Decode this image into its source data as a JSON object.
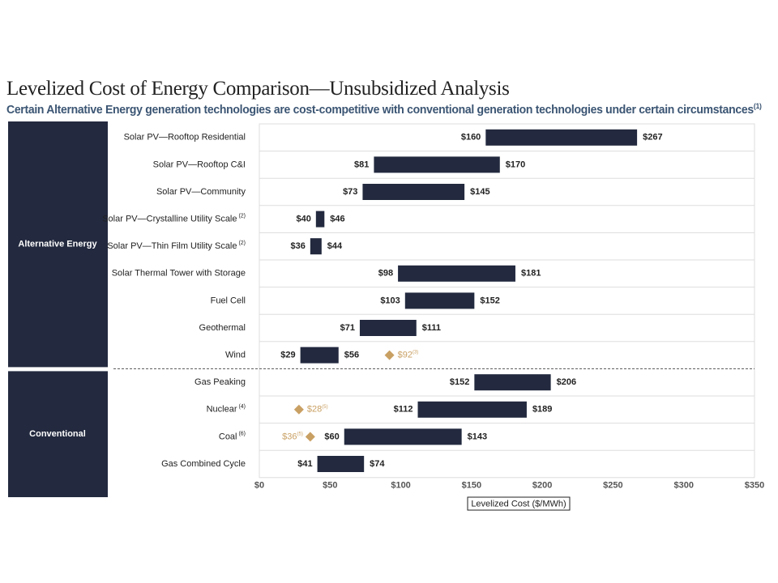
{
  "title": "Levelized Cost of Energy Comparison—Unsubsidized Analysis",
  "subtitle": "Certain Alternative Energy generation technologies are cost-competitive with conventional generation technologies under certain circumstances",
  "subtitle_note": "(1)",
  "colors": {
    "bar": "#232a3f",
    "panel": "#232a3f",
    "marker": "#c9a063",
    "subtitle": "#3b5573"
  },
  "chart_data": {
    "type": "bar",
    "orientation": "horizontal-range",
    "xlabel": "Levelized Cost ($/MWh)",
    "xlim": [
      0,
      350
    ],
    "xticks": [
      "$0",
      "$50",
      "$100",
      "$150",
      "$200",
      "$250",
      "$300",
      "$350"
    ],
    "groups": [
      {
        "name": "Alternative Energy",
        "rows": 9
      },
      {
        "name": "Conventional",
        "rows": 4
      }
    ],
    "categories": [
      {
        "label": "Solar PV—Rooftop Residential",
        "note": "",
        "low": 160,
        "high": 267
      },
      {
        "label": "Solar PV—Rooftop C&I",
        "note": "",
        "low": 81,
        "high": 170
      },
      {
        "label": "Solar PV—Community",
        "note": "",
        "low": 73,
        "high": 145
      },
      {
        "label": "Solar PV—Crystalline Utility Scale",
        "note": "(2)",
        "low": 40,
        "high": 46
      },
      {
        "label": "Solar PV—Thin Film Utility Scale",
        "note": "(2)",
        "low": 36,
        "high": 44
      },
      {
        "label": "Solar Thermal Tower with Storage",
        "note": "",
        "low": 98,
        "high": 181
      },
      {
        "label": "Fuel Cell",
        "note": "",
        "low": 103,
        "high": 152
      },
      {
        "label": "Geothermal",
        "note": "",
        "low": 71,
        "high": 111
      },
      {
        "label": "Wind",
        "note": "",
        "low": 29,
        "high": 56,
        "marker": {
          "value": 92,
          "note": "(3)",
          "side": "right"
        }
      },
      {
        "label": "Gas Peaking",
        "note": "",
        "low": 152,
        "high": 206
      },
      {
        "label": "Nuclear",
        "note": "(4)",
        "low": 112,
        "high": 189,
        "marker": {
          "value": 28,
          "note": "(5)",
          "side": "right"
        }
      },
      {
        "label": "Coal",
        "note": "(6)",
        "low": 60,
        "high": 143,
        "marker": {
          "value": 36,
          "note": "(5)",
          "side": "left"
        }
      },
      {
        "label": "Gas Combined Cycle",
        "note": "",
        "low": 41,
        "high": 74
      }
    ]
  }
}
